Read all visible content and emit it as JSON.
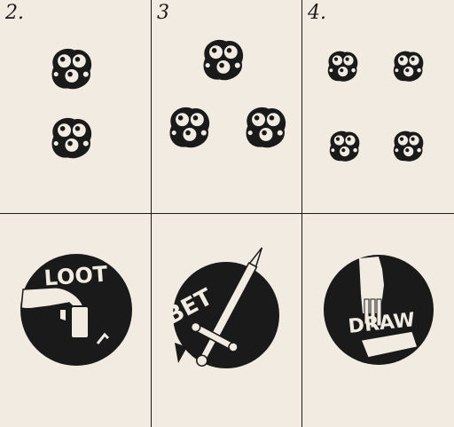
{
  "cards": [
    {
      "number": "2.",
      "token_count": 2
    },
    {
      "number": "3",
      "token_count": 3
    },
    {
      "number": "4.",
      "token_count": 4
    }
  ],
  "action_coins": [
    {
      "label": "LOOT",
      "icon": "hand-taking-card-icon"
    },
    {
      "label": "BET",
      "icon": "sword-icon"
    },
    {
      "label": "DRAW",
      "icon": "hand-drawing-card-icon"
    }
  ],
  "colors": {
    "paper": "#f1ebe2",
    "ink": "#1a1a1a"
  }
}
